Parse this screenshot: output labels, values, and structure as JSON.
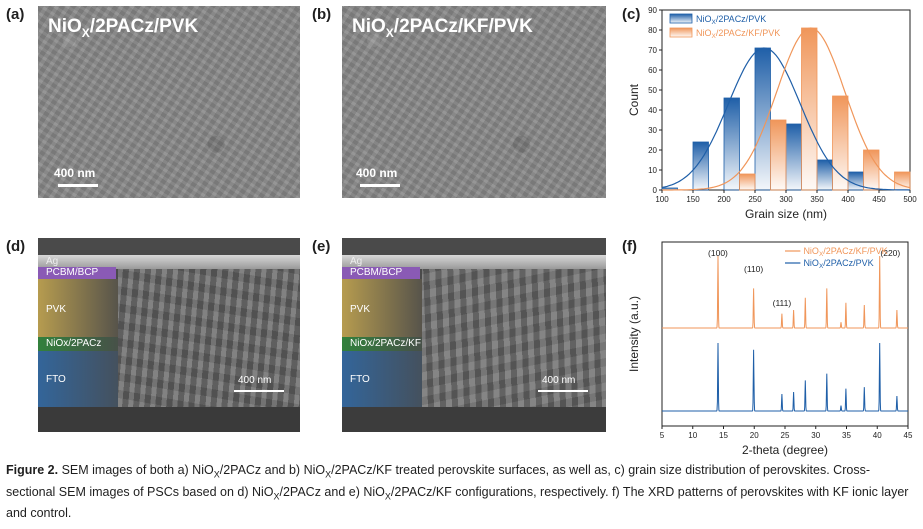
{
  "panels": {
    "a": {
      "letter": "(a)",
      "title_main": "NiO",
      "title_sub": "X",
      "title_rest": "/2PACz/PVK",
      "scale": "400 nm"
    },
    "b": {
      "letter": "(b)",
      "title_main": "NiO",
      "title_sub": "X",
      "title_rest": "/2PACz/KF/PVK",
      "scale": "400 nm"
    },
    "c": {
      "letter": "(c)"
    },
    "d": {
      "letter": "(d)",
      "layers": {
        "ag": "Ag",
        "pcbm": "PCBM/BCP",
        "pvk": "PVK",
        "nio": "NiOx/2PACz",
        "fto": "FTO"
      },
      "scale": "400 nm"
    },
    "e": {
      "letter": "(e)",
      "layers": {
        "ag": "Ag",
        "pcbm": "PCBM/BCP",
        "pvk": "PVK",
        "nio": "NiOx/2PACz/KF",
        "fto": "FTO"
      },
      "scale": "400 nm"
    },
    "f": {
      "letter": "(f)"
    }
  },
  "colors": {
    "blue": "#1f5fa8",
    "orange": "#f0965a",
    "sem_ag": "#b0b0b0",
    "sem_pcbm": "#8a5ab5",
    "sem_pvk": "#b79a4a",
    "sem_nio": "#2e8a3a",
    "sem_fto": "#2f6aa8"
  },
  "chart_data": [
    {
      "type": "bar",
      "panel": "c",
      "xlabel": "Grain size (nm)",
      "ylabel": "Count",
      "xlim": [
        100,
        500
      ],
      "ylim": [
        0,
        90
      ],
      "xticks": [
        100,
        150,
        200,
        250,
        300,
        350,
        400,
        450,
        500
      ],
      "yticks": [
        0,
        10,
        20,
        30,
        40,
        50,
        60,
        70,
        80,
        90
      ],
      "legend_position": "top-left",
      "series": [
        {
          "name": "NiOX/2PACz/PVK",
          "legend_main": "NiO",
          "legend_sub": "X",
          "legend_rest": "/2PACz/PVK",
          "color": "#1f5fa8",
          "bins": [
            [
              100,
              125
            ],
            [
              150,
              175
            ],
            [
              200,
              225
            ],
            [
              250,
              275
            ],
            [
              300,
              325
            ],
            [
              350,
              375
            ],
            [
              400,
              425
            ]
          ],
          "values": [
            1,
            24,
            46,
            71,
            33,
            15,
            9
          ],
          "fit_center": 265,
          "fit_sigma": 58,
          "fit_peak": 71
        },
        {
          "name": "NiOX/2PACz/KF/PVK",
          "legend_main": "NiO",
          "legend_sub": "X",
          "legend_rest": "/2PACz/KF/PVK",
          "color": "#f0965a",
          "bins": [
            [
              225,
              250
            ],
            [
              275,
              300
            ],
            [
              325,
              350
            ],
            [
              375,
              400
            ],
            [
              425,
              450
            ],
            [
              475,
              500
            ]
          ],
          "values": [
            8,
            35,
            81,
            47,
            20,
            9
          ],
          "fit_center": 340,
          "fit_sigma": 55,
          "fit_peak": 81
        }
      ]
    },
    {
      "type": "line",
      "panel": "f",
      "xlabel": "2-theta (degree)",
      "ylabel": "Intensity (a.u.)",
      "xlim": [
        5,
        45
      ],
      "xticks": [
        5,
        10,
        15,
        20,
        25,
        30,
        35,
        40,
        45
      ],
      "peak_labels": [
        {
          "text": "(100)",
          "x": 14.1
        },
        {
          "text": "(110)",
          "x": 19.9
        },
        {
          "text": "(111)",
          "x": 24.5
        },
        {
          "text": "(220)",
          "x": 40.5
        }
      ],
      "legend_position": "top-right",
      "series": [
        {
          "name": "NiOX/2PACz/KF/PVK",
          "legend_main": "NiO",
          "legend_sub": "X",
          "legend_rest": "/2PACz/KF/PVK",
          "color": "#f0965a",
          "peaks": [
            [
              14.1,
              1.0
            ],
            [
              19.9,
              0.55
            ],
            [
              24.5,
              0.2
            ],
            [
              26.4,
              0.25
            ],
            [
              28.3,
              0.42
            ],
            [
              31.8,
              0.55
            ],
            [
              34.1,
              0.08
            ],
            [
              34.9,
              0.35
            ],
            [
              37.9,
              0.32
            ],
            [
              40.4,
              1.0
            ],
            [
              43.2,
              0.25
            ]
          ]
        },
        {
          "name": "NiOX/2PACz/PVK",
          "legend_main": "NiO",
          "legend_sub": "X",
          "legend_rest": "/2PACz/PVK",
          "color": "#1f5fa8",
          "peaks": [
            [
              14.1,
              1.0
            ],
            [
              19.9,
              0.9
            ],
            [
              24.5,
              0.25
            ],
            [
              26.4,
              0.28
            ],
            [
              28.3,
              0.45
            ],
            [
              31.8,
              0.55
            ],
            [
              34.1,
              0.08
            ],
            [
              34.9,
              0.33
            ],
            [
              37.9,
              0.35
            ],
            [
              40.4,
              1.0
            ],
            [
              43.2,
              0.22
            ]
          ]
        }
      ]
    }
  ],
  "caption": {
    "label": "Figure 2.",
    "p1": "  SEM images of both a) NiO",
    "s1": "X",
    "p2": "/2PACz and b) NiO",
    "s2": "X",
    "p3": "/2PACz/KF treated perovskite surfaces, as well as, c) grain size distribution of perovskites. Cross-sectional SEM images of PSCs based on d) NiO",
    "s3": "X",
    "p4": "/2PACz and e) NiO",
    "s4": "X",
    "p5": "/2PACz/KF configurations, respectively. f) The XRD patterns of perovskites with KF ionic layer and control."
  }
}
